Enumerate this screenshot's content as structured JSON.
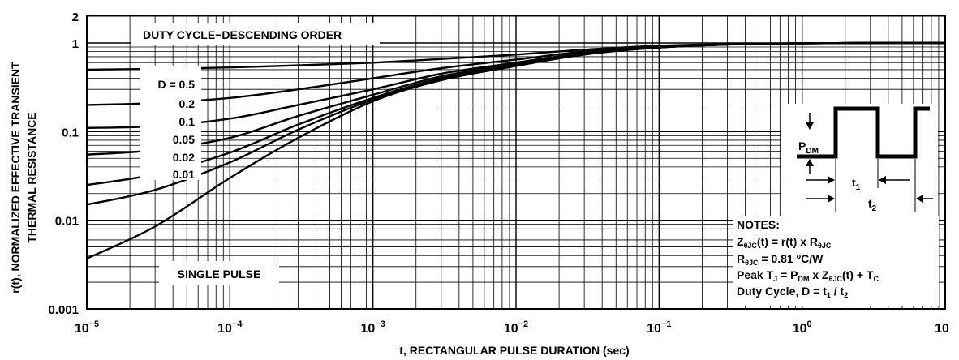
{
  "chart_data": {
    "type": "line",
    "xlabel": "t, RECTANGULAR PULSE DURATION (sec)",
    "ylabel_line1": "r(t), NORMALIZED EFFECTIVE TRANSIENT",
    "ylabel_line2": "THERMAL RESISTANCE",
    "x_scale": "log",
    "y_scale": "log",
    "xlim": [
      1e-05,
      10
    ],
    "ylim": [
      0.001,
      2
    ],
    "grid": true,
    "x_ticks": [
      {
        "value": 1e-05,
        "base": "10",
        "exp": "−5"
      },
      {
        "value": 0.0001,
        "base": "10",
        "exp": "−4"
      },
      {
        "value": 0.001,
        "base": "10",
        "exp": "−3"
      },
      {
        "value": 0.01,
        "base": "10",
        "exp": "−2"
      },
      {
        "value": 0.1,
        "base": "10",
        "exp": "−1"
      },
      {
        "value": 1,
        "base": "10",
        "exp": "0"
      },
      {
        "value": 10,
        "base": "10",
        "exp": ""
      }
    ],
    "y_ticks": [
      {
        "value": 0.001,
        "label": "0.001"
      },
      {
        "value": 0.01,
        "label": "0.01"
      },
      {
        "value": 0.1,
        "label": "0.1"
      },
      {
        "value": 1,
        "label": "1"
      },
      {
        "value": 2,
        "label": "2"
      }
    ],
    "series": [
      {
        "name": "D = 0.5",
        "x": [
          1e-05,
          3e-05,
          0.0001,
          0.0003,
          0.001,
          0.003,
          0.01,
          0.03,
          0.1,
          0.3,
          1,
          3,
          10
        ],
        "values": [
          0.5,
          0.51,
          0.53,
          0.56,
          0.6,
          0.66,
          0.74,
          0.84,
          0.93,
          0.97,
          0.99,
          1.0,
          1.0
        ]
      },
      {
        "name": "0.2",
        "x": [
          1e-05,
          3e-05,
          0.0001,
          0.0003,
          0.001,
          0.003,
          0.01,
          0.03,
          0.1,
          0.3,
          1,
          3,
          10
        ],
        "values": [
          0.2,
          0.21,
          0.24,
          0.3,
          0.4,
          0.52,
          0.65,
          0.8,
          0.91,
          0.96,
          0.99,
          1.0,
          1.0
        ]
      },
      {
        "name": "0.1",
        "x": [
          1e-05,
          3e-05,
          0.0001,
          0.0003,
          0.001,
          0.003,
          0.01,
          0.03,
          0.1,
          0.3,
          1,
          3,
          10
        ],
        "values": [
          0.11,
          0.115,
          0.14,
          0.2,
          0.3,
          0.45,
          0.6,
          0.77,
          0.9,
          0.96,
          0.99,
          1.0,
          1.0
        ]
      },
      {
        "name": "0.05",
        "x": [
          1e-05,
          3e-05,
          0.0001,
          0.0003,
          0.001,
          0.003,
          0.01,
          0.03,
          0.1,
          0.3,
          1,
          3,
          10
        ],
        "values": [
          0.055,
          0.062,
          0.085,
          0.15,
          0.26,
          0.42,
          0.58,
          0.76,
          0.89,
          0.96,
          0.99,
          1.0,
          1.0
        ]
      },
      {
        "name": "0.02",
        "x": [
          1e-05,
          3e-05,
          0.0001,
          0.0003,
          0.001,
          0.003,
          0.01,
          0.03,
          0.1,
          0.3,
          1,
          3,
          10
        ],
        "values": [
          0.025,
          0.033,
          0.058,
          0.12,
          0.24,
          0.4,
          0.57,
          0.75,
          0.89,
          0.96,
          0.99,
          1.0,
          1.0
        ]
      },
      {
        "name": "0.01",
        "x": [
          1e-05,
          3e-05,
          0.0001,
          0.0003,
          0.001,
          0.003,
          0.01,
          0.03,
          0.1,
          0.3,
          1,
          3,
          10
        ],
        "values": [
          0.015,
          0.022,
          0.045,
          0.105,
          0.23,
          0.39,
          0.56,
          0.75,
          0.89,
          0.96,
          0.99,
          1.0,
          1.0
        ]
      },
      {
        "name": "SINGLE PULSE",
        "x": [
          1e-05,
          3e-05,
          0.0001,
          0.0003,
          0.001,
          0.003,
          0.01,
          0.03,
          0.1,
          0.3,
          1,
          3,
          10
        ],
        "values": [
          0.0037,
          0.0085,
          0.03,
          0.085,
          0.22,
          0.38,
          0.55,
          0.74,
          0.89,
          0.96,
          0.99,
          1.0,
          1.0
        ]
      }
    ],
    "annotations": {
      "duty_title": "DUTY CYCLE−DESCENDING ORDER",
      "single_pulse": "SINGLE PULSE",
      "duty_labels": [
        "D = 0.5",
        "0.2",
        "0.1",
        "0.05",
        "0.02",
        "0.01"
      ],
      "inset": {
        "p_label": "P",
        "p_sub": "DM",
        "t1": "t",
        "t1_sub": "1",
        "t2": "t",
        "t2_sub": "2"
      },
      "notes_title": "NOTES:",
      "notes": [
        [
          {
            "t": "Z"
          },
          {
            "t": "θJC",
            "sub": true
          },
          {
            "t": "(t) = r(t) x R"
          },
          {
            "t": "θJC",
            "sub": true
          }
        ],
        [
          {
            "t": "R"
          },
          {
            "t": "θJC",
            "sub": true
          },
          {
            "t": " = 0.81 "
          },
          {
            "t": "o",
            "sup": true
          },
          {
            "t": "C/W"
          }
        ],
        [
          {
            "t": "Peak T"
          },
          {
            "t": "J",
            "sub": true
          },
          {
            "t": " = P"
          },
          {
            "t": "DM",
            "sub": true
          },
          {
            "t": " x Z"
          },
          {
            "t": "θJC",
            "sub": true
          },
          {
            "t": "(t) + T"
          },
          {
            "t": "C",
            "sub": true
          }
        ],
        [
          {
            "t": "Duty Cycle, D = t"
          },
          {
            "t": "1",
            "sub": true
          },
          {
            "t": " / t"
          },
          {
            "t": "2",
            "sub": true
          }
        ]
      ]
    }
  }
}
